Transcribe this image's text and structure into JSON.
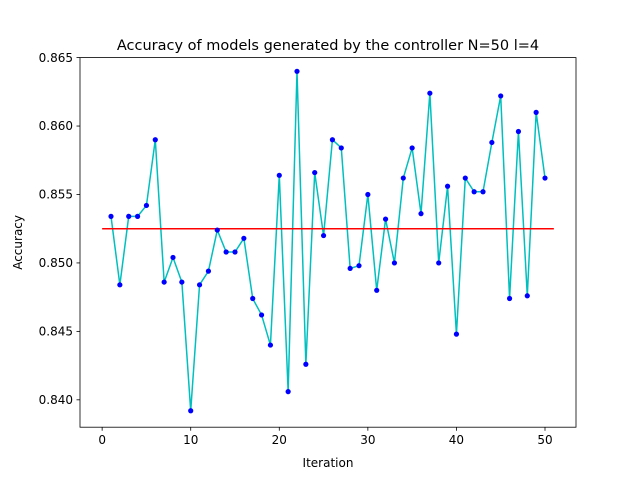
{
  "chart_data": {
    "type": "line",
    "title": "Accuracy of models generated by the controller N=50 l=4",
    "xlabel": "Iteration",
    "ylabel": "Accuracy",
    "xlim": [
      -2.5,
      53.5
    ],
    "ylim": [
      0.838,
      0.865
    ],
    "xticks": [
      0,
      10,
      20,
      30,
      40,
      50
    ],
    "xtick_labels": [
      "0",
      "10",
      "20",
      "30",
      "40",
      "50"
    ],
    "yticks": [
      0.84,
      0.845,
      0.85,
      0.855,
      0.86,
      0.865
    ],
    "ytick_labels": [
      "0.840",
      "0.845",
      "0.850",
      "0.855",
      "0.860",
      "0.865"
    ],
    "grid": false,
    "series": [
      {
        "line_color": "#00bfbf",
        "marker_color": "#0000ff",
        "x": [
          1,
          2,
          3,
          4,
          5,
          6,
          7,
          8,
          9,
          10,
          11,
          12,
          13,
          14,
          15,
          16,
          17,
          18,
          19,
          20,
          21,
          22,
          23,
          24,
          25,
          26,
          27,
          28,
          29,
          30,
          31,
          32,
          33,
          34,
          35,
          36,
          37,
          38,
          39,
          40,
          41,
          42,
          43,
          44,
          45,
          46,
          47,
          48,
          49,
          50
        ],
        "y": [
          0.8534,
          0.8484,
          0.8534,
          0.8534,
          0.8542,
          0.859,
          0.8486,
          0.8504,
          0.8486,
          0.8392,
          0.8484,
          0.8494,
          0.8524,
          0.8508,
          0.8508,
          0.8518,
          0.8474,
          0.8462,
          0.844,
          0.8564,
          0.8406,
          0.864,
          0.8426,
          0.8566,
          0.852,
          0.859,
          0.8584,
          0.8496,
          0.8498,
          0.855,
          0.848,
          0.8532,
          0.85,
          0.8562,
          0.8584,
          0.8536,
          0.8624,
          0.85,
          0.8556,
          0.8448,
          0.8562,
          0.8552,
          0.8552,
          0.8588,
          0.8622,
          0.8474,
          0.8596,
          0.8476,
          0.861,
          0.8562
        ]
      },
      {
        "line_color": "#ff0000",
        "x": [
          0,
          51
        ],
        "y": [
          0.8525,
          0.8525
        ]
      }
    ]
  }
}
